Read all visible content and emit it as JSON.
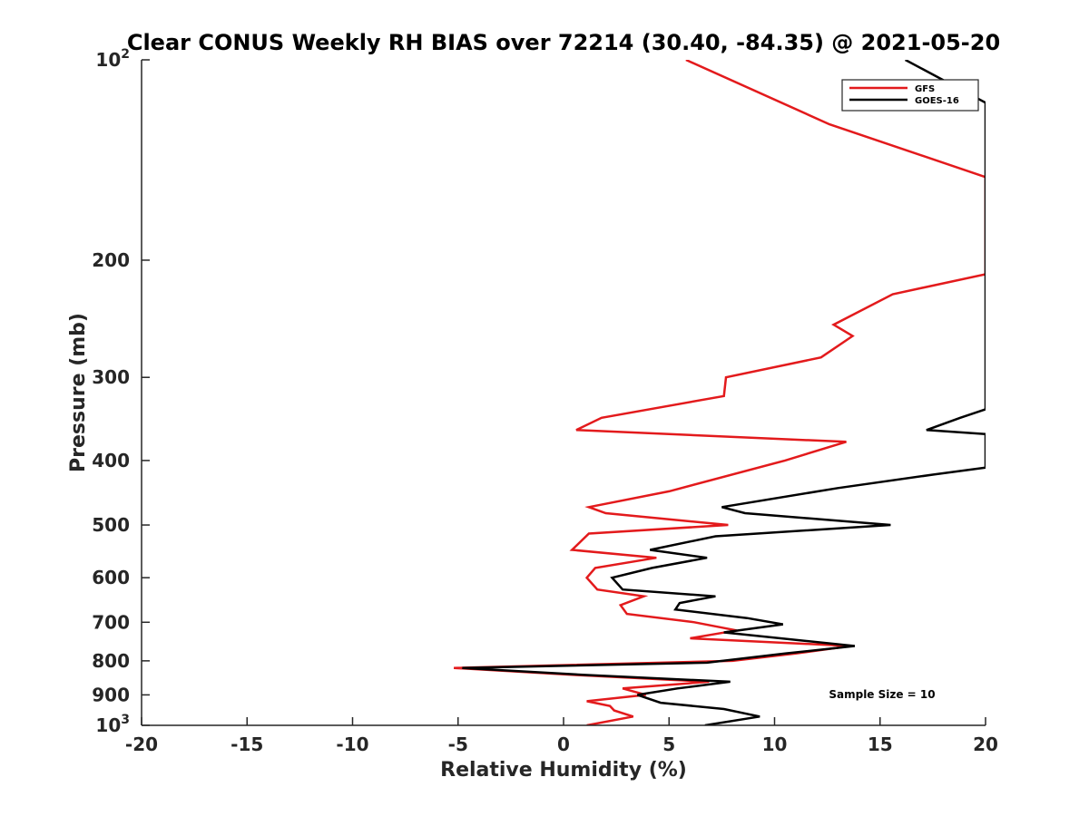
{
  "chart_data": {
    "type": "line",
    "title": "Clear CONUS Weekly RH BIAS over 72214 (30.40, -84.35) @ 2021-05-20",
    "xlabel": "Relative Humidity (%)",
    "ylabel": "Pressure (mb)",
    "xlim": [
      -20,
      20
    ],
    "ylim": [
      100,
      1000
    ],
    "yscale": "log",
    "y_reversed": true,
    "x_ticks": [
      "-20",
      "-15",
      "-10",
      "-5",
      "0",
      "5",
      "10",
      "15",
      "20"
    ],
    "y_ticks": [
      {
        "value": 100,
        "base": "10",
        "exp": "2"
      },
      {
        "value": 200,
        "label": "200"
      },
      {
        "value": 300,
        "label": "300"
      },
      {
        "value": 400,
        "label": "400"
      },
      {
        "value": 500,
        "label": "500"
      },
      {
        "value": 600,
        "label": "600"
      },
      {
        "value": 700,
        "label": "700"
      },
      {
        "value": 800,
        "label": "800"
      },
      {
        "value": 900,
        "label": "900"
      },
      {
        "value": 1000,
        "base": "10",
        "exp": "3"
      }
    ],
    "legend_position": "top-right",
    "annotation": "Sample Size = 10",
    "series": [
      {
        "name": "GFS",
        "color": "#e31a1c",
        "points": [
          [
            5.8,
            100
          ],
          [
            12.6,
            125
          ],
          [
            20.0,
            150
          ],
          [
            20.0,
            210
          ],
          [
            15.6,
            225
          ],
          [
            12.8,
            250
          ],
          [
            13.7,
            260
          ],
          [
            12.2,
            280
          ],
          [
            7.7,
            300
          ],
          [
            7.6,
            320
          ],
          [
            1.8,
            345
          ],
          [
            0.6,
            360
          ],
          [
            13.4,
            375
          ],
          [
            10.5,
            400
          ],
          [
            5.0,
            445
          ],
          [
            1.2,
            470
          ],
          [
            2.0,
            480
          ],
          [
            7.8,
            500
          ],
          [
            1.2,
            515
          ],
          [
            0.4,
            545
          ],
          [
            4.4,
            560
          ],
          [
            1.5,
            580
          ],
          [
            1.1,
            600
          ],
          [
            1.6,
            625
          ],
          [
            3.8,
            640
          ],
          [
            2.7,
            660
          ],
          [
            3.0,
            680
          ],
          [
            6.2,
            700
          ],
          [
            8.2,
            720
          ],
          [
            6.0,
            740
          ],
          [
            13.6,
            760
          ],
          [
            11.0,
            780
          ],
          [
            8.0,
            800
          ],
          [
            -5.2,
            820
          ],
          [
            0.5,
            840
          ],
          [
            6.9,
            860
          ],
          [
            2.8,
            880
          ],
          [
            3.9,
            900
          ],
          [
            1.1,
            920
          ],
          [
            2.2,
            935
          ],
          [
            2.4,
            950
          ],
          [
            3.3,
            970
          ],
          [
            1.1,
            1000
          ]
        ]
      },
      {
        "name": "GOES-16",
        "color": "#000000",
        "points": [
          [
            16.2,
            100
          ],
          [
            20.0,
            116
          ],
          [
            20.0,
            335
          ],
          [
            18.8,
            345
          ],
          [
            17.2,
            360
          ],
          [
            20.0,
            365
          ],
          [
            20.0,
            410
          ],
          [
            17.5,
            420
          ],
          [
            13.0,
            440
          ],
          [
            7.5,
            470
          ],
          [
            8.6,
            480
          ],
          [
            15.5,
            500
          ],
          [
            7.2,
            520
          ],
          [
            4.1,
            545
          ],
          [
            6.8,
            560
          ],
          [
            4.2,
            580
          ],
          [
            2.3,
            600
          ],
          [
            2.8,
            625
          ],
          [
            7.2,
            640
          ],
          [
            5.5,
            655
          ],
          [
            5.3,
            670
          ],
          [
            8.7,
            690
          ],
          [
            10.4,
            705
          ],
          [
            7.6,
            725
          ],
          [
            13.8,
            760
          ],
          [
            10.5,
            780
          ],
          [
            6.8,
            805
          ],
          [
            -4.8,
            820
          ],
          [
            1.0,
            840
          ],
          [
            7.9,
            860
          ],
          [
            5.4,
            880
          ],
          [
            3.5,
            900
          ],
          [
            4.6,
            925
          ],
          [
            7.6,
            945
          ],
          [
            9.3,
            970
          ],
          [
            6.7,
            1000
          ]
        ]
      }
    ]
  }
}
